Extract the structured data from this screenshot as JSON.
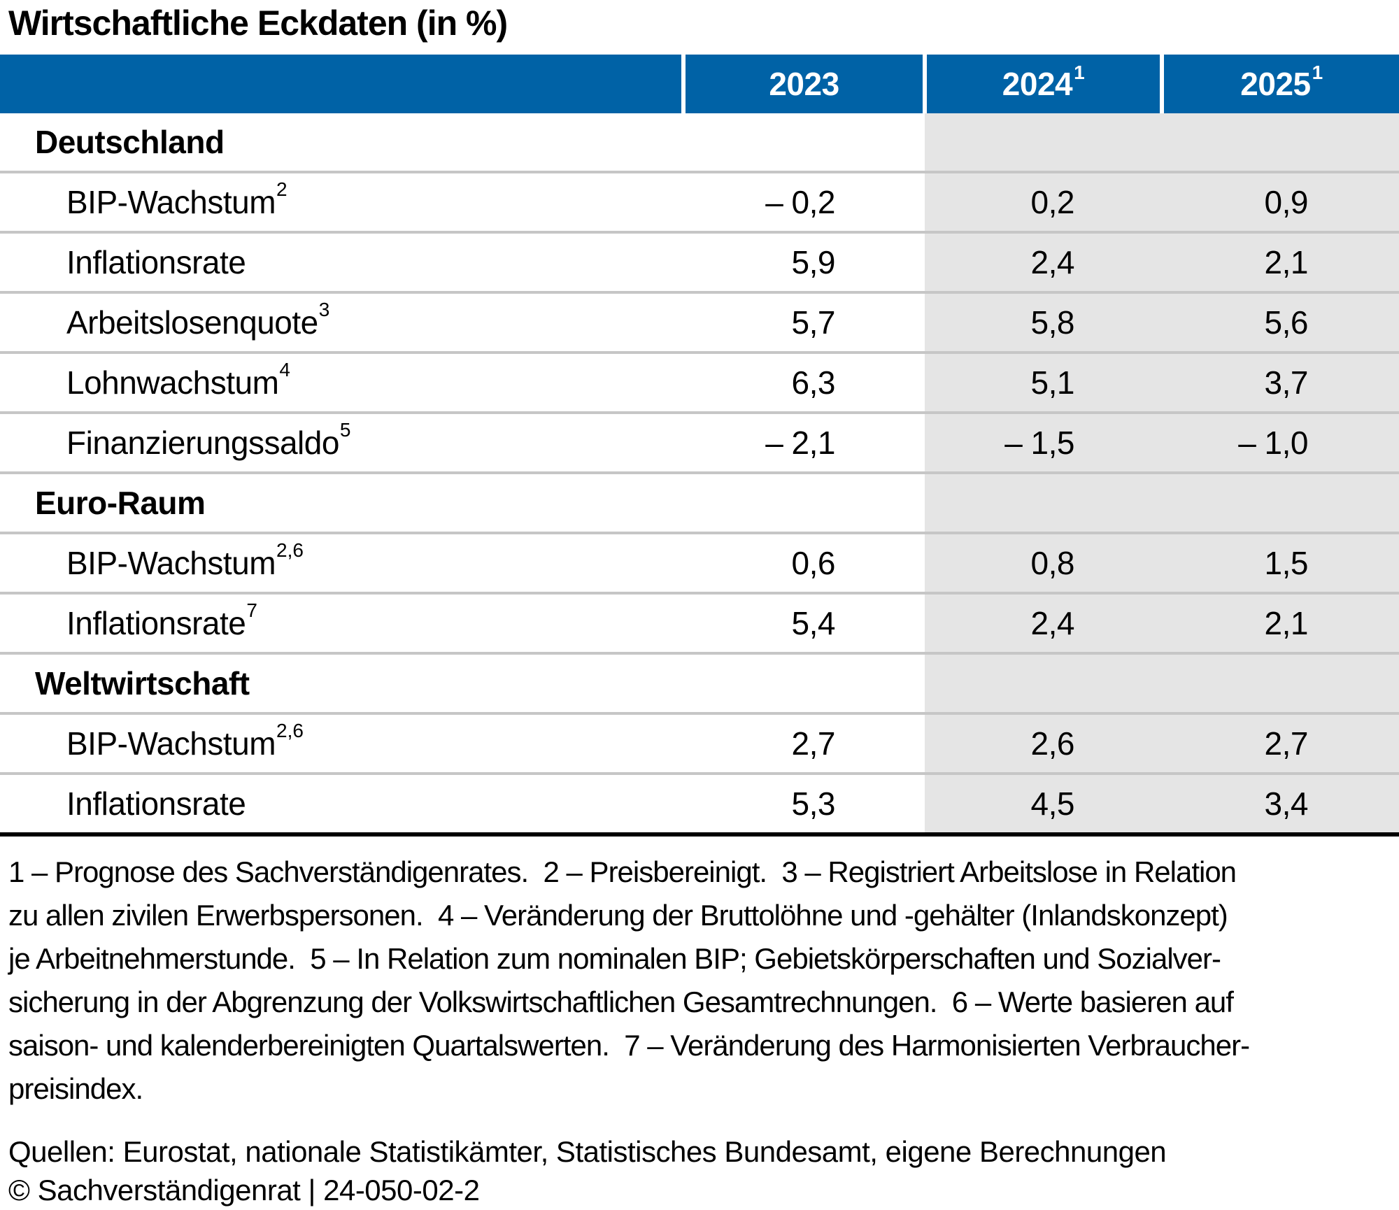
{
  "title": "Wirtschaftliche Eckdaten (in %)",
  "colors": {
    "header_blue": "#0062a6",
    "forecast_shade": "#e5e5e5",
    "row_separator": "#c6c6c6",
    "bottom_rule": "#000000",
    "header_text": "#ffffff",
    "body_text": "#000000"
  },
  "table": {
    "header": {
      "label": "",
      "y2023": "2023",
      "y2024": "2024",
      "y2025": "2025",
      "forecast_sup": "1"
    },
    "rows": [
      {
        "type": "section",
        "label": "Deutschland",
        "sup": "",
        "v2023": "",
        "v2024": "",
        "v2025": ""
      },
      {
        "type": "data",
        "label": "BIP-Wachstum",
        "sup": "2",
        "v2023": "– 0,2",
        "v2024": "0,2",
        "v2025": "0,9"
      },
      {
        "type": "data",
        "label": "Inflationsrate",
        "sup": "",
        "v2023": "5,9",
        "v2024": "2,4",
        "v2025": "2,1"
      },
      {
        "type": "data",
        "label": "Arbeitslosenquote",
        "sup": "3",
        "v2023": "5,7",
        "v2024": "5,8",
        "v2025": "5,6"
      },
      {
        "type": "data",
        "label": "Lohnwachstum",
        "sup": "4",
        "v2023": "6,3",
        "v2024": "5,1",
        "v2025": "3,7"
      },
      {
        "type": "data",
        "label": "Finanzierungssaldo",
        "sup": "5",
        "v2023": "– 2,1",
        "v2024": "– 1,5",
        "v2025": "– 1,0"
      },
      {
        "type": "section",
        "label": "Euro-Raum",
        "sup": "",
        "v2023": "",
        "v2024": "",
        "v2025": ""
      },
      {
        "type": "data",
        "label": "BIP-Wachstum",
        "sup": "2,6",
        "v2023": "0,6",
        "v2024": "0,8",
        "v2025": "1,5"
      },
      {
        "type": "data",
        "label": "Inflationsrate",
        "sup": "7",
        "v2023": "5,4",
        "v2024": "2,4",
        "v2025": "2,1"
      },
      {
        "type": "section",
        "label": "Weltwirtschaft",
        "sup": "",
        "v2023": "",
        "v2024": "",
        "v2025": ""
      },
      {
        "type": "data",
        "label": "BIP-Wachstum",
        "sup": "2,6",
        "v2023": "2,7",
        "v2024": "2,6",
        "v2025": "2,7"
      },
      {
        "type": "data",
        "label": "Inflationsrate",
        "sup": "",
        "v2023": "5,3",
        "v2024": "4,5",
        "v2025": "3,4"
      }
    ]
  },
  "footnotes": {
    "lines": [
      "1 – Prognose des Sachverständigenrates.  2 – Preisbereinigt.  3 – Registriert Arbeitslose in Relation",
      "zu allen zivilen Erwerbspersonen.  4 – Veränderung der Bruttolöhne und -gehälter (Inlandskonzept)",
      "je Arbeitnehmerstunde.  5 – In Relation zum nominalen BIP; Gebietskörperschaften und Sozialver-",
      "sicherung in der Abgrenzung der Volkswirtschaftlichen Gesamtrechnungen.  6 – Werte basieren auf",
      "saison- und kalenderbereinigten Quartalswerten.  7 – Veränderung des Harmonisierten Verbraucher-",
      "preisindex."
    ]
  },
  "source": "Quellen: Eurostat, nationale Statistikämter, Statistisches Bundesamt, eigene Berechnungen",
  "copyright": "© Sachverständigenrat | 24-050-02-2",
  "chart_data": {
    "type": "table",
    "title": "Wirtschaftliche Eckdaten (in %)",
    "unit": "%",
    "columns": [
      "2023",
      "2024¹",
      "2025¹"
    ],
    "forecast_columns": [
      "2024¹",
      "2025¹"
    ],
    "sections": [
      {
        "name": "Deutschland",
        "rows": [
          {
            "label": "BIP-Wachstum",
            "footnote_refs": "2",
            "values": [
              -0.2,
              0.2,
              0.9
            ]
          },
          {
            "label": "Inflationsrate",
            "footnote_refs": "",
            "values": [
              5.9,
              2.4,
              2.1
            ]
          },
          {
            "label": "Arbeitslosenquote",
            "footnote_refs": "3",
            "values": [
              5.7,
              5.8,
              5.6
            ]
          },
          {
            "label": "Lohnwachstum",
            "footnote_refs": "4",
            "values": [
              6.3,
              5.1,
              3.7
            ]
          },
          {
            "label": "Finanzierungssaldo",
            "footnote_refs": "5",
            "values": [
              -2.1,
              -1.5,
              -1.0
            ]
          }
        ]
      },
      {
        "name": "Euro-Raum",
        "rows": [
          {
            "label": "BIP-Wachstum",
            "footnote_refs": "2,6",
            "values": [
              0.6,
              0.8,
              1.5
            ]
          },
          {
            "label": "Inflationsrate",
            "footnote_refs": "7",
            "values": [
              5.4,
              2.4,
              2.1
            ]
          }
        ]
      },
      {
        "name": "Weltwirtschaft",
        "rows": [
          {
            "label": "BIP-Wachstum",
            "footnote_refs": "2,6",
            "values": [
              2.7,
              2.6,
              2.7
            ]
          },
          {
            "label": "Inflationsrate",
            "footnote_refs": "",
            "values": [
              5.3,
              4.5,
              3.4
            ]
          }
        ]
      }
    ]
  }
}
